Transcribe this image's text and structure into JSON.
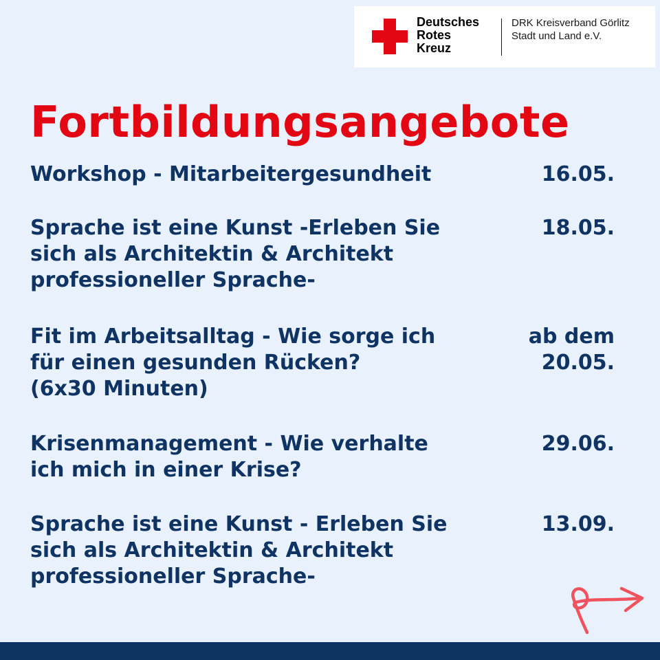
{
  "logo": {
    "name_lines": [
      "Deutsches",
      "Rotes",
      "Kreuz"
    ],
    "org_lines": [
      "DRK Kreisverband Görlitz",
      "Stadt und Land e.V."
    ],
    "cross_color": "#e30613"
  },
  "title": "Fortbildungsangebote",
  "courses": [
    {
      "title_lines": [
        "Workshop - Mitarbeitergesundheit"
      ],
      "date_lines": [
        "16.05."
      ]
    },
    {
      "title_lines": [
        "Sprache ist eine Kunst -Erleben Sie",
        "sich als Architektin & Architekt",
        "professioneller Sprache-"
      ],
      "date_lines": [
        "18.05."
      ]
    },
    {
      "title_lines": [
        "Fit im Arbeitsalltag - Wie sorge ich",
        "für einen gesunden Rücken?",
        "(6x30 Minuten)"
      ],
      "date_lines": [
        "ab dem",
        "20.05."
      ]
    },
    {
      "title_lines": [
        "Krisenmanagement - Wie verhalte",
        "ich mich in einer Krise?"
      ],
      "date_lines": [
        "29.06."
      ]
    },
    {
      "title_lines": [
        "Sprache ist eine Kunst - Erleben Sie",
        "sich als Architektin & Architekt",
        "professioneller Sprache-"
      ],
      "date_lines": [
        "13.09."
      ]
    }
  ],
  "arrow_icon": "curly-arrow-right-icon",
  "colors": {
    "background": "#e9f1fc",
    "accent_red": "#e30613",
    "text_navy": "#0f3363",
    "footer": "#0f3363",
    "arrow": "#f0535d"
  }
}
